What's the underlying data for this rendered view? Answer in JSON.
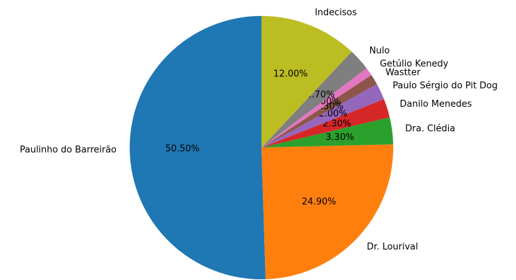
{
  "chart_data": {
    "type": "pie",
    "categories": [
      "Paulinho do Barreirão",
      "Dr. Lourival",
      "Dra. Clédia",
      "Danilo Menedes",
      "Paulo Sérgio do Pit Dog",
      "Wastter",
      "Getúlio Kenedy",
      "Nulo",
      "Indecisos"
    ],
    "values": [
      50.5,
      24.9,
      3.3,
      2.3,
      2.0,
      1.3,
      1.0,
      2.7,
      12.0
    ],
    "value_labels": [
      "50.50%",
      "24.90%",
      "3.30%",
      "2.30%",
      "2.00%",
      "1.30%",
      "1.00%",
      "2.70%",
      "12.00%"
    ],
    "colors": [
      "#1f77b4",
      "#ff7f0e",
      "#2ca02c",
      "#d62728",
      "#9467bd",
      "#8c564b",
      "#e377c2",
      "#7f7f7f",
      "#bcbd22"
    ]
  }
}
